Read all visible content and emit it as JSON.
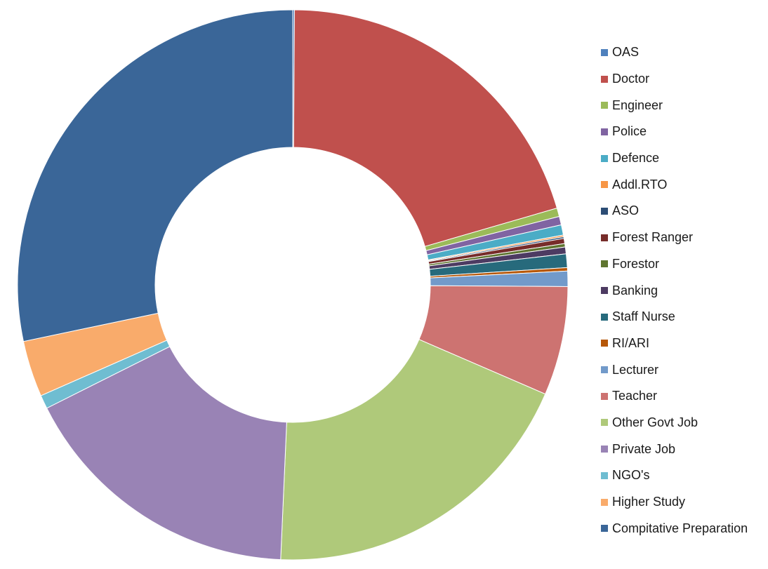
{
  "chart_data": {
    "type": "pie",
    "variant": "donut",
    "title": "",
    "legend_position": "right",
    "categories": [
      "OAS",
      "Doctor",
      "Engineer",
      "Police",
      "Defence",
      "Addl.RTO",
      "ASO",
      "Forest Ranger",
      "Forestor",
      "Banking",
      "Staff Nurse",
      "RI/ARI",
      "Lecturer",
      "Teacher",
      "Other Govt Job",
      "Private Job",
      "NGO's",
      "Higher Study",
      "Compitative Preparation"
    ],
    "values": [
      0.1,
      20.4,
      0.5,
      0.5,
      0.6,
      0.1,
      0.1,
      0.3,
      0.2,
      0.4,
      0.8,
      0.2,
      0.9,
      6.4,
      19.2,
      16.9,
      0.8,
      3.3,
      28.3
    ],
    "colors": [
      "#4F81BD",
      "#C0504D",
      "#9BBB59",
      "#8064A2",
      "#4BACC6",
      "#F79646",
      "#2C4D75",
      "#772C2A",
      "#5F7530",
      "#4D3B62",
      "#276A7C",
      "#B65708",
      "#729ACA",
      "#CD7371",
      "#AFC97A",
      "#9983B5",
      "#6FBDD1",
      "#F9AB6B",
      "#3A6698"
    ]
  }
}
